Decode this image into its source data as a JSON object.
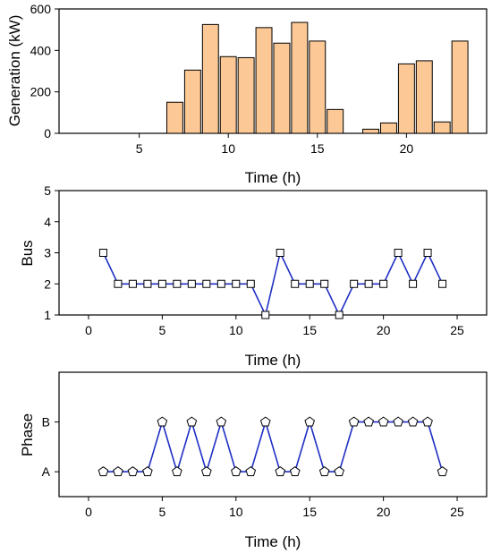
{
  "chart_data": [
    {
      "type": "bar",
      "xlabel": "Time (h)",
      "ylabel": "Generation (kW)",
      "xlim": [
        0.5,
        24.5
      ],
      "ylim": [
        0,
        600
      ],
      "xticks": [
        5,
        10,
        15,
        20
      ],
      "yticks": [
        0,
        200,
        400,
        600
      ],
      "x": [
        1,
        2,
        3,
        4,
        5,
        6,
        7,
        8,
        9,
        10,
        11,
        12,
        13,
        14,
        15,
        16,
        17,
        18,
        19,
        20,
        21,
        22,
        23,
        24
      ],
      "values": [
        0,
        0,
        0,
        0,
        0,
        0,
        150,
        305,
        525,
        370,
        365,
        510,
        435,
        535,
        445,
        115,
        0,
        20,
        50,
        335,
        350,
        55,
        445,
        0
      ],
      "colors": {
        "bar": "#fcc896",
        "edge": "#000000"
      }
    },
    {
      "type": "line",
      "xlabel": "Time (h)",
      "ylabel": "Bus",
      "xlim": [
        -2,
        27
      ],
      "ylim": [
        1,
        5
      ],
      "xticks": [
        0,
        5,
        10,
        15,
        20,
        25
      ],
      "yticks": [
        1,
        2,
        3,
        4,
        5
      ],
      "marker": "square",
      "x": [
        1,
        2,
        3,
        4,
        5,
        6,
        7,
        8,
        9,
        10,
        11,
        12,
        13,
        14,
        15,
        16,
        17,
        18,
        19,
        20,
        21,
        22,
        23,
        24
      ],
      "values": [
        3,
        2,
        2,
        2,
        2,
        2,
        2,
        2,
        2,
        2,
        2,
        1,
        3,
        2,
        2,
        2,
        1,
        2,
        2,
        2,
        3,
        2,
        3,
        2
      ],
      "colors": {
        "line": "#1f2fc4"
      }
    },
    {
      "type": "line",
      "xlabel": "Time (h)",
      "ylabel": "Phase",
      "xlim": [
        -2,
        27
      ],
      "ylim": [
        0.5,
        3
      ],
      "xticks": [
        0,
        5,
        10,
        15,
        20,
        25
      ],
      "ytick_values": [
        1,
        2
      ],
      "ytick_labels": [
        "A",
        "B"
      ],
      "marker": "pentagon",
      "x": [
        1,
        2,
        3,
        4,
        5,
        6,
        7,
        8,
        9,
        10,
        11,
        12,
        13,
        14,
        15,
        16,
        17,
        18,
        19,
        20,
        21,
        22,
        23,
        24
      ],
      "values": [
        1,
        1,
        1,
        1,
        2,
        1,
        2,
        1,
        2,
        1,
        1,
        2,
        1,
        1,
        2,
        1,
        1,
        2,
        2,
        2,
        2,
        2,
        2,
        1
      ],
      "colors": {
        "line": "#1f2fc4"
      }
    }
  ]
}
